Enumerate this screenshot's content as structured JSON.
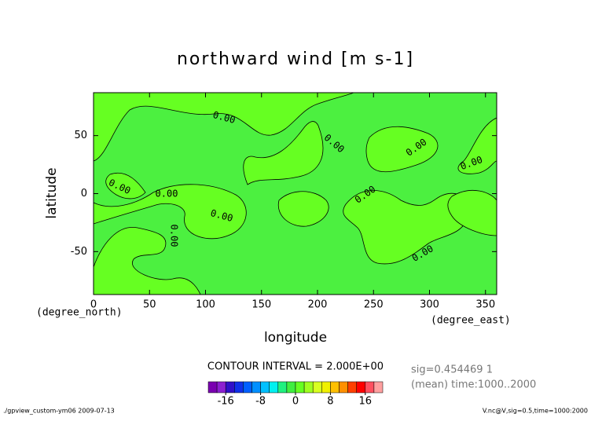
{
  "chart_data": {
    "type": "contour",
    "title": "northward wind [m s-1]",
    "x_label": "longitude",
    "y_label": "latitude",
    "x_unit": "(degree_east)",
    "y_unit": "(degree_north)",
    "xlim": [
      0,
      360
    ],
    "ylim": [
      -87,
      87
    ],
    "xticks": [
      0,
      50,
      100,
      150,
      200,
      250,
      300,
      350
    ],
    "yticks": [
      -50,
      0,
      50
    ],
    "contour_level": {
      "value": 0,
      "label": "0.00"
    },
    "contour_interval": "CONTOUR INTERVAL = 2.000E+00",
    "info": [
      "sig=0.454469 1",
      "(mean) time:1000..2000"
    ],
    "colorbar": {
      "levels": [
        -20,
        -18,
        -16,
        -14,
        -12,
        -10,
        -8,
        -6,
        -4,
        -2,
        0,
        2,
        4,
        6,
        8,
        10,
        12,
        14,
        16,
        18,
        20
      ],
      "colors": [
        "#7a00b0",
        "#8c20d0",
        "#3010c8",
        "#1030e8",
        "#0060ff",
        "#0090ff",
        "#00c0ff",
        "#00f0f0",
        "#20f080",
        "#40ee40",
        "#66ff22",
        "#a0ff20",
        "#d8ff20",
        "#f0f000",
        "#ffc000",
        "#ff9000",
        "#ff4000",
        "#ff0000",
        "#ff5060",
        "#ffa0a0"
      ],
      "ticks": [
        -16,
        -8,
        0,
        8,
        16
      ]
    },
    "footer_left": "./gpview_custom-ym06  2009-07-13",
    "footer_right": "V.nc@V,sig=0.5,time=1000:2000"
  }
}
